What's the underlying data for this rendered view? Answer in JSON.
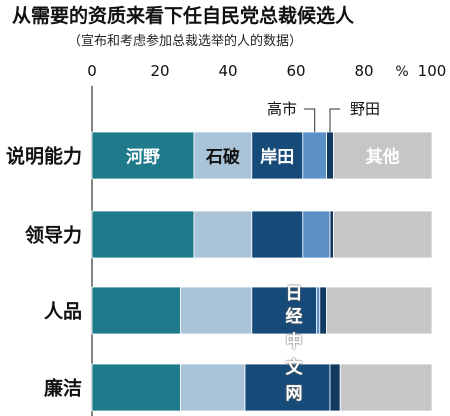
{
  "chart_data": {
    "type": "bar",
    "stacked": true,
    "orientation": "horizontal",
    "title": "从需要的资质来看下任自民党总裁候选人",
    "subtitle": "（宣布和考虑参加总裁选举的人的数据）",
    "unit": "%",
    "xlim": [
      0,
      100
    ],
    "ticks": [
      "0",
      "20",
      "40",
      "60",
      "80",
      "100"
    ],
    "categories": [
      "说明能力",
      "领导力",
      "人品",
      "廉洁"
    ],
    "series": [
      {
        "name": "河野",
        "color": "#1f7b8c",
        "values": [
          30,
          30,
          26,
          26
        ]
      },
      {
        "name": "石破",
        "color": "#a9c4d8",
        "values": [
          17,
          17,
          21,
          19
        ]
      },
      {
        "name": "岸田",
        "color": "#164a78",
        "values": [
          15,
          15,
          19,
          25
        ]
      },
      {
        "name": "高市",
        "color": "#5c91c8",
        "values": [
          7,
          8,
          1,
          0
        ]
      },
      {
        "name": "野田",
        "color": "#123a60",
        "values": [
          2,
          1,
          2,
          3
        ]
      },
      {
        "name": "其他",
        "color": "#c6c6c6",
        "values": [
          29,
          29,
          31,
          27
        ]
      }
    ],
    "inline_labels": [
      "河野",
      "石破",
      "岸田",
      "其他"
    ],
    "callout_labels": [
      "高市",
      "野田"
    ]
  },
  "watermark": [
    "日",
    "经",
    "中",
    "文",
    "网"
  ]
}
